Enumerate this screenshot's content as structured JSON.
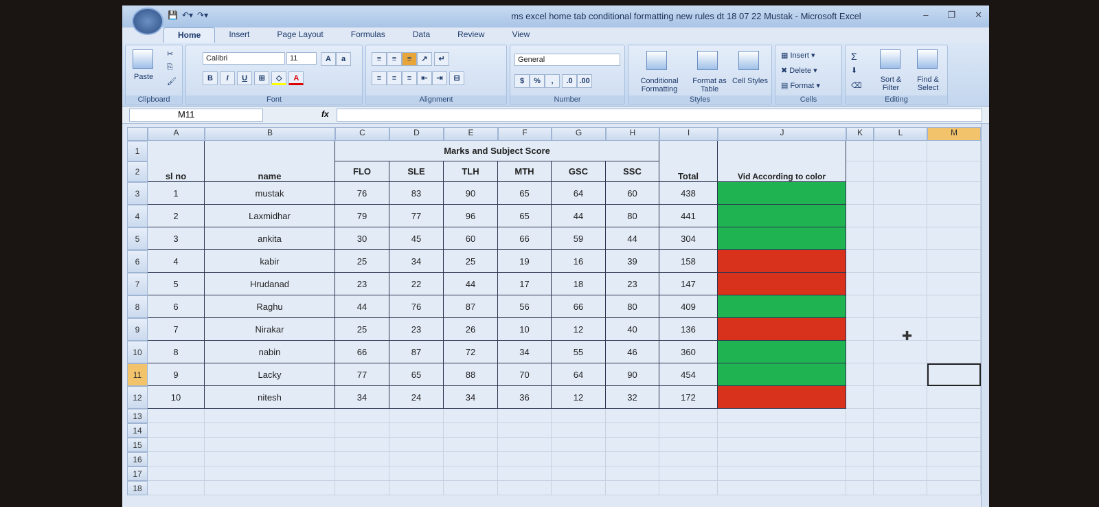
{
  "window": {
    "title": "ms excel home tab conditional formatting new rules dt 18 07 22 Mustak - Microsoft Excel"
  },
  "ribbon": {
    "tabs": [
      "Home",
      "Insert",
      "Page Layout",
      "Formulas",
      "Data",
      "Review",
      "View"
    ],
    "active_tab": "Home",
    "clipboard": {
      "label": "Clipboard",
      "paste": "Paste"
    },
    "font": {
      "label": "Font",
      "name": "Calibri",
      "size": "11",
      "bold": "B",
      "italic": "I",
      "underline": "U"
    },
    "alignment": {
      "label": "Alignment"
    },
    "number": {
      "label": "Number",
      "format": "General",
      "currency": "$",
      "percent": "%",
      "comma": ","
    },
    "styles": {
      "label": "Styles",
      "conditional": "Conditional Formatting",
      "format_table": "Format as Table",
      "cell_styles": "Cell Styles"
    },
    "cells": {
      "label": "Cells",
      "insert": "Insert",
      "delete": "Delete",
      "format": "Format"
    },
    "editing": {
      "label": "Editing",
      "sort": "Sort & Filter",
      "find": "Find & Select",
      "sum": "Σ"
    }
  },
  "formula_bar": {
    "name_box": "M11",
    "fx": "fx",
    "value": ""
  },
  "sheet": {
    "columns": [
      "A",
      "B",
      "C",
      "D",
      "E",
      "F",
      "G",
      "H",
      "I",
      "J",
      "K",
      "L",
      "M"
    ],
    "selected_cell": "M11",
    "merged_header": "Marks and Subject Score",
    "headers": [
      "sl no",
      "name",
      "FLO",
      "SLE",
      "TLH",
      "MTH",
      "GSC",
      "SSC",
      "Total",
      "Vid According to color"
    ],
    "rows": [
      [
        "1",
        "mustak",
        "76",
        "83",
        "90",
        "65",
        "64",
        "60",
        "438"
      ],
      [
        "2",
        "Laxmidhar",
        "79",
        "77",
        "96",
        "65",
        "44",
        "80",
        "441"
      ],
      [
        "3",
        "ankita",
        "30",
        "45",
        "60",
        "66",
        "59",
        "44",
        "304"
      ],
      [
        "4",
        "kabir",
        "25",
        "34",
        "25",
        "19",
        "16",
        "39",
        "158"
      ],
      [
        "5",
        "Hrudanad",
        "23",
        "22",
        "44",
        "17",
        "18",
        "23",
        "147"
      ],
      [
        "6",
        "Raghu",
        "44",
        "76",
        "87",
        "56",
        "66",
        "80",
        "409"
      ],
      [
        "7",
        "Nirakar",
        "25",
        "23",
        "26",
        "10",
        "12",
        "40",
        "136"
      ],
      [
        "8",
        "nabin",
        "66",
        "87",
        "72",
        "34",
        "55",
        "46",
        "360"
      ],
      [
        "9",
        "Lacky",
        "77",
        "65",
        "88",
        "70",
        "64",
        "90",
        "454"
      ],
      [
        "10",
        "nitesh",
        "34",
        "24",
        "34",
        "36",
        "12",
        "32",
        "172"
      ]
    ],
    "color_flags": [
      "green",
      "green",
      "green",
      "red",
      "red",
      "green",
      "red",
      "green",
      "green",
      "red"
    ],
    "colors": {
      "green": "#1fb352",
      "red": "#d8321c"
    },
    "row_numbers": [
      "1",
      "2",
      "3",
      "4",
      "5",
      "6",
      "7",
      "8",
      "9",
      "10",
      "11",
      "12",
      "13",
      "14",
      "15",
      "16",
      "17",
      "18"
    ]
  }
}
